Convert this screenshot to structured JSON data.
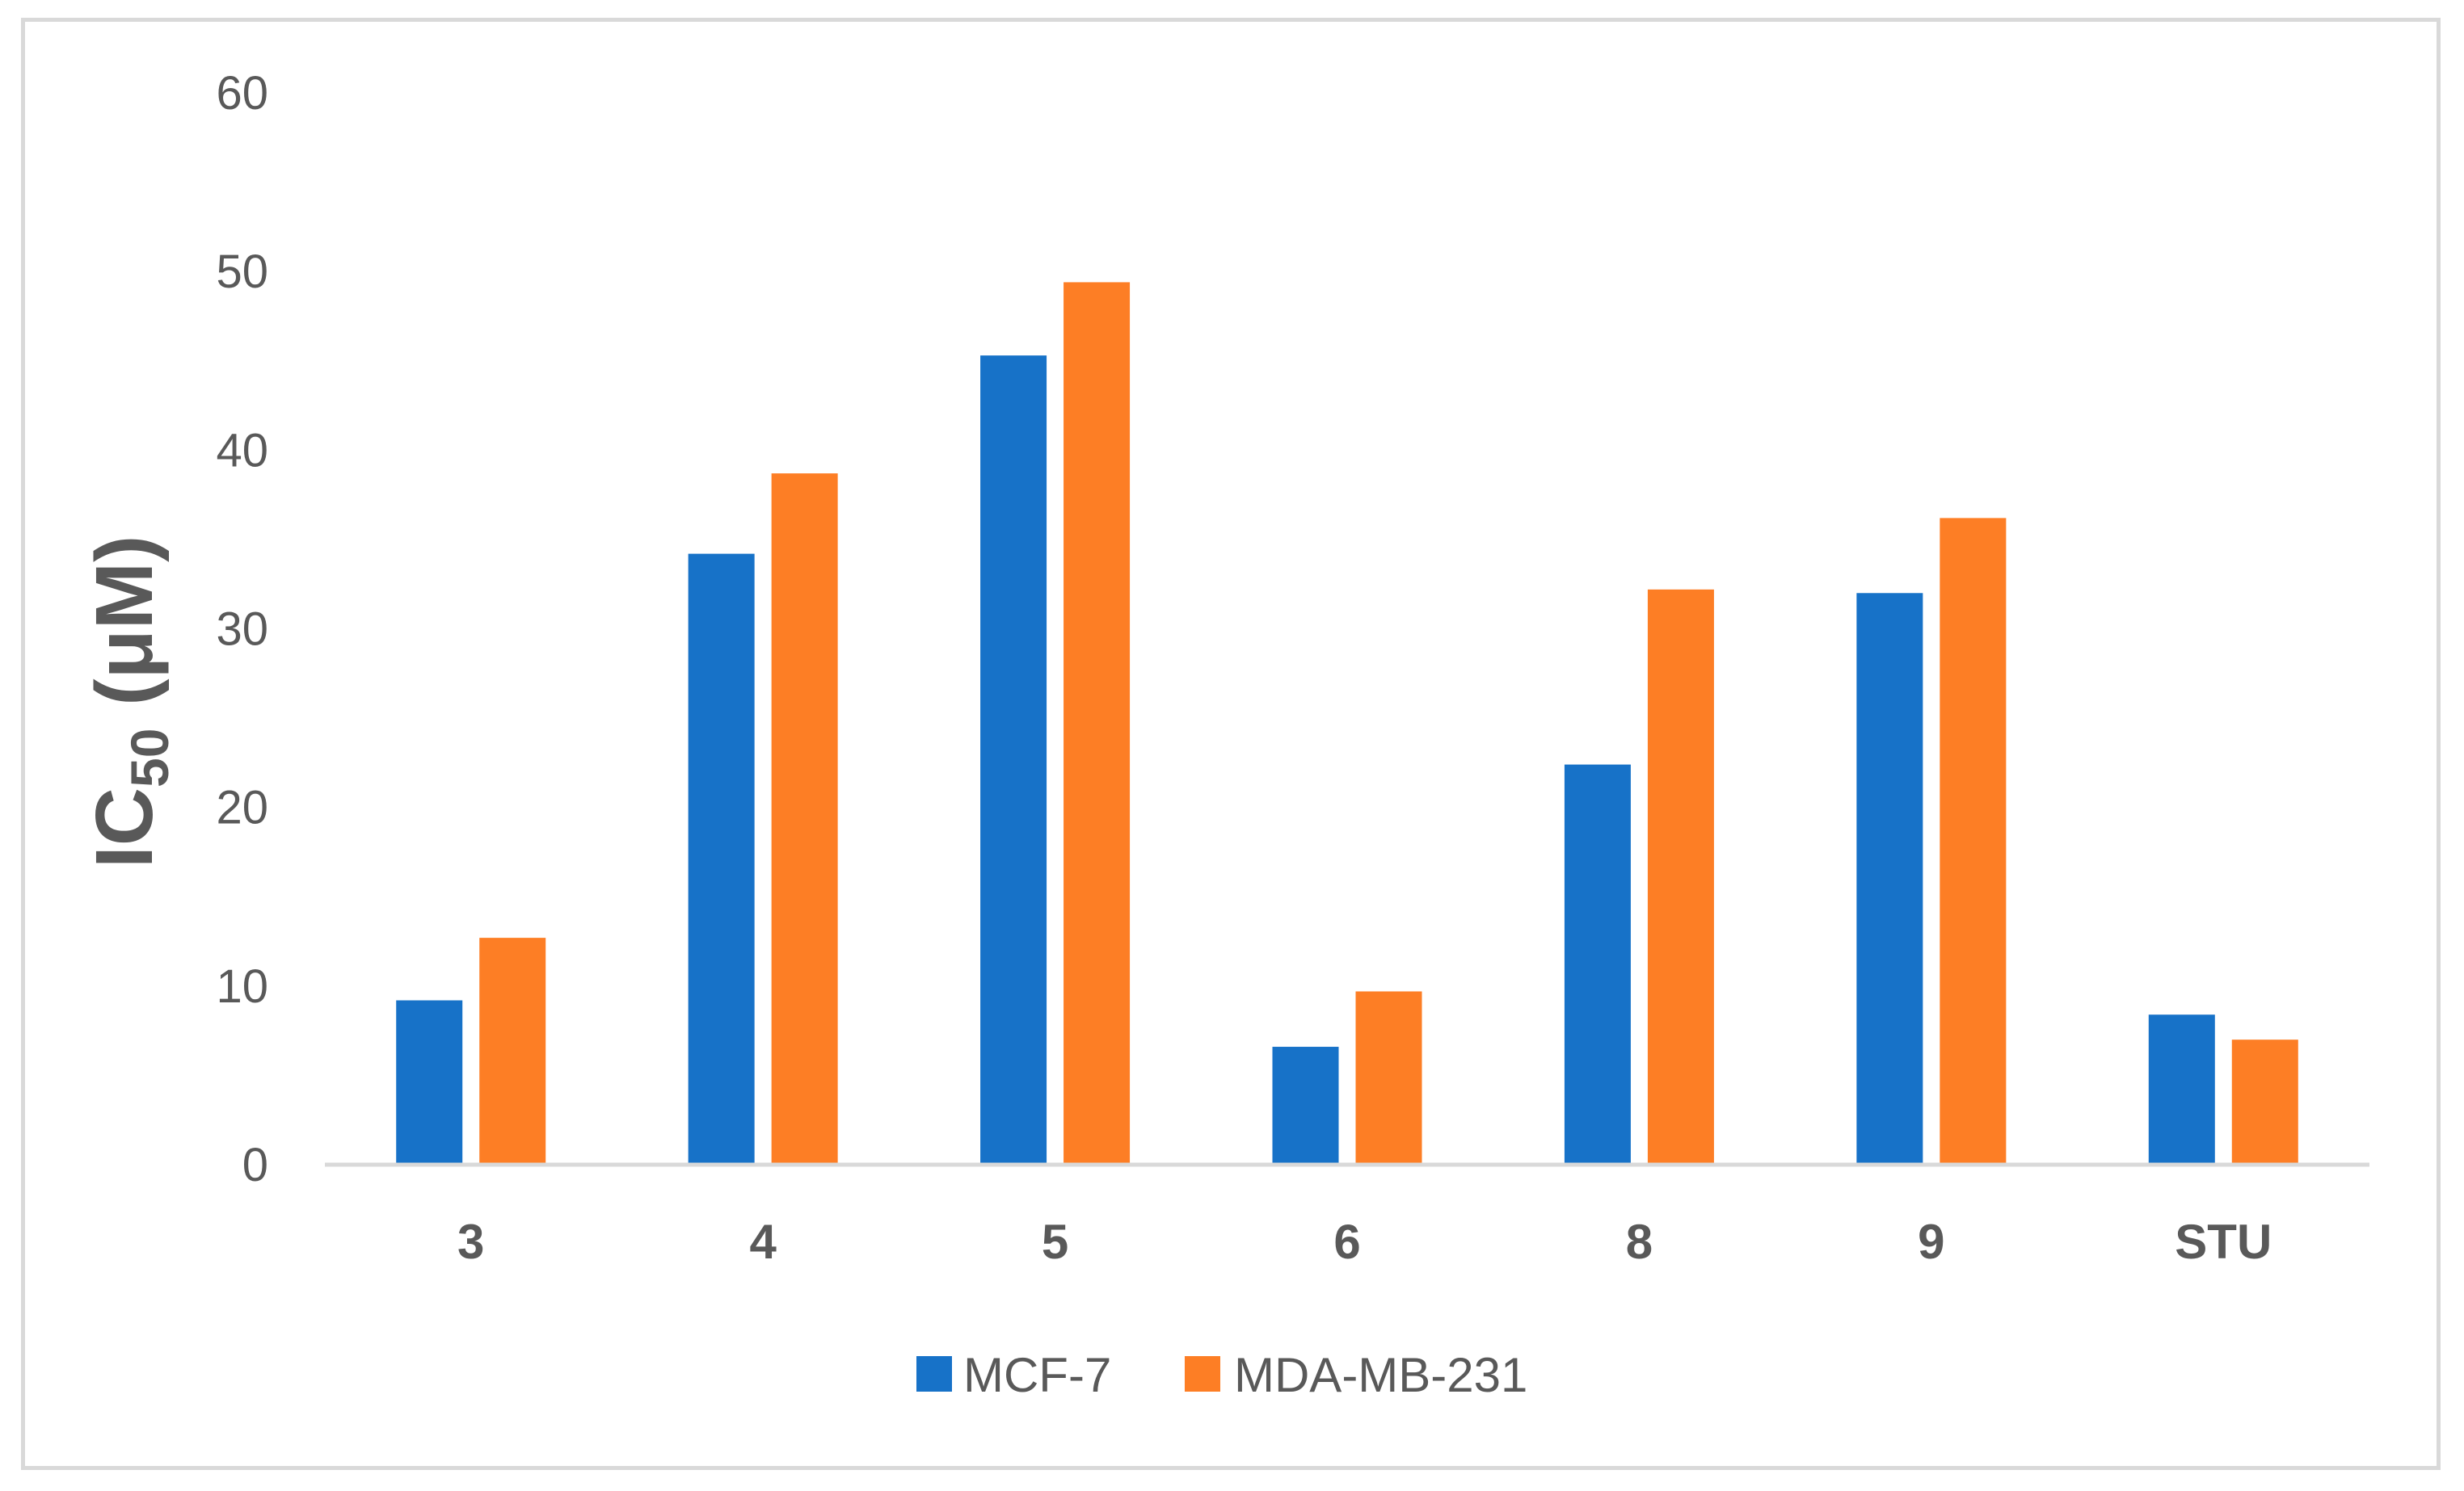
{
  "chart_data": {
    "type": "bar",
    "title": "",
    "xlabel": "",
    "ylabel": {
      "main": "IC",
      "subscript": "50",
      "unit": "(μM)"
    },
    "ylim": [
      0,
      60
    ],
    "yticks": [
      0,
      10,
      20,
      30,
      40,
      50,
      60
    ],
    "grid": false,
    "legend_position": "bottom",
    "categories": [
      "3",
      "4",
      "5",
      "6",
      "8",
      "9",
      "STU"
    ],
    "series": [
      {
        "name": "MCF-7",
        "color": "#1772c8",
        "values": [
          9.2,
          34.2,
          45.3,
          6.6,
          22.4,
          32.0,
          8.4
        ]
      },
      {
        "name": "MDA-MB-231",
        "color": "#fd7e25",
        "values": [
          12.7,
          38.7,
          49.4,
          9.7,
          32.2,
          36.2,
          7.0
        ]
      }
    ],
    "axis_color": "#d9d9d9"
  }
}
